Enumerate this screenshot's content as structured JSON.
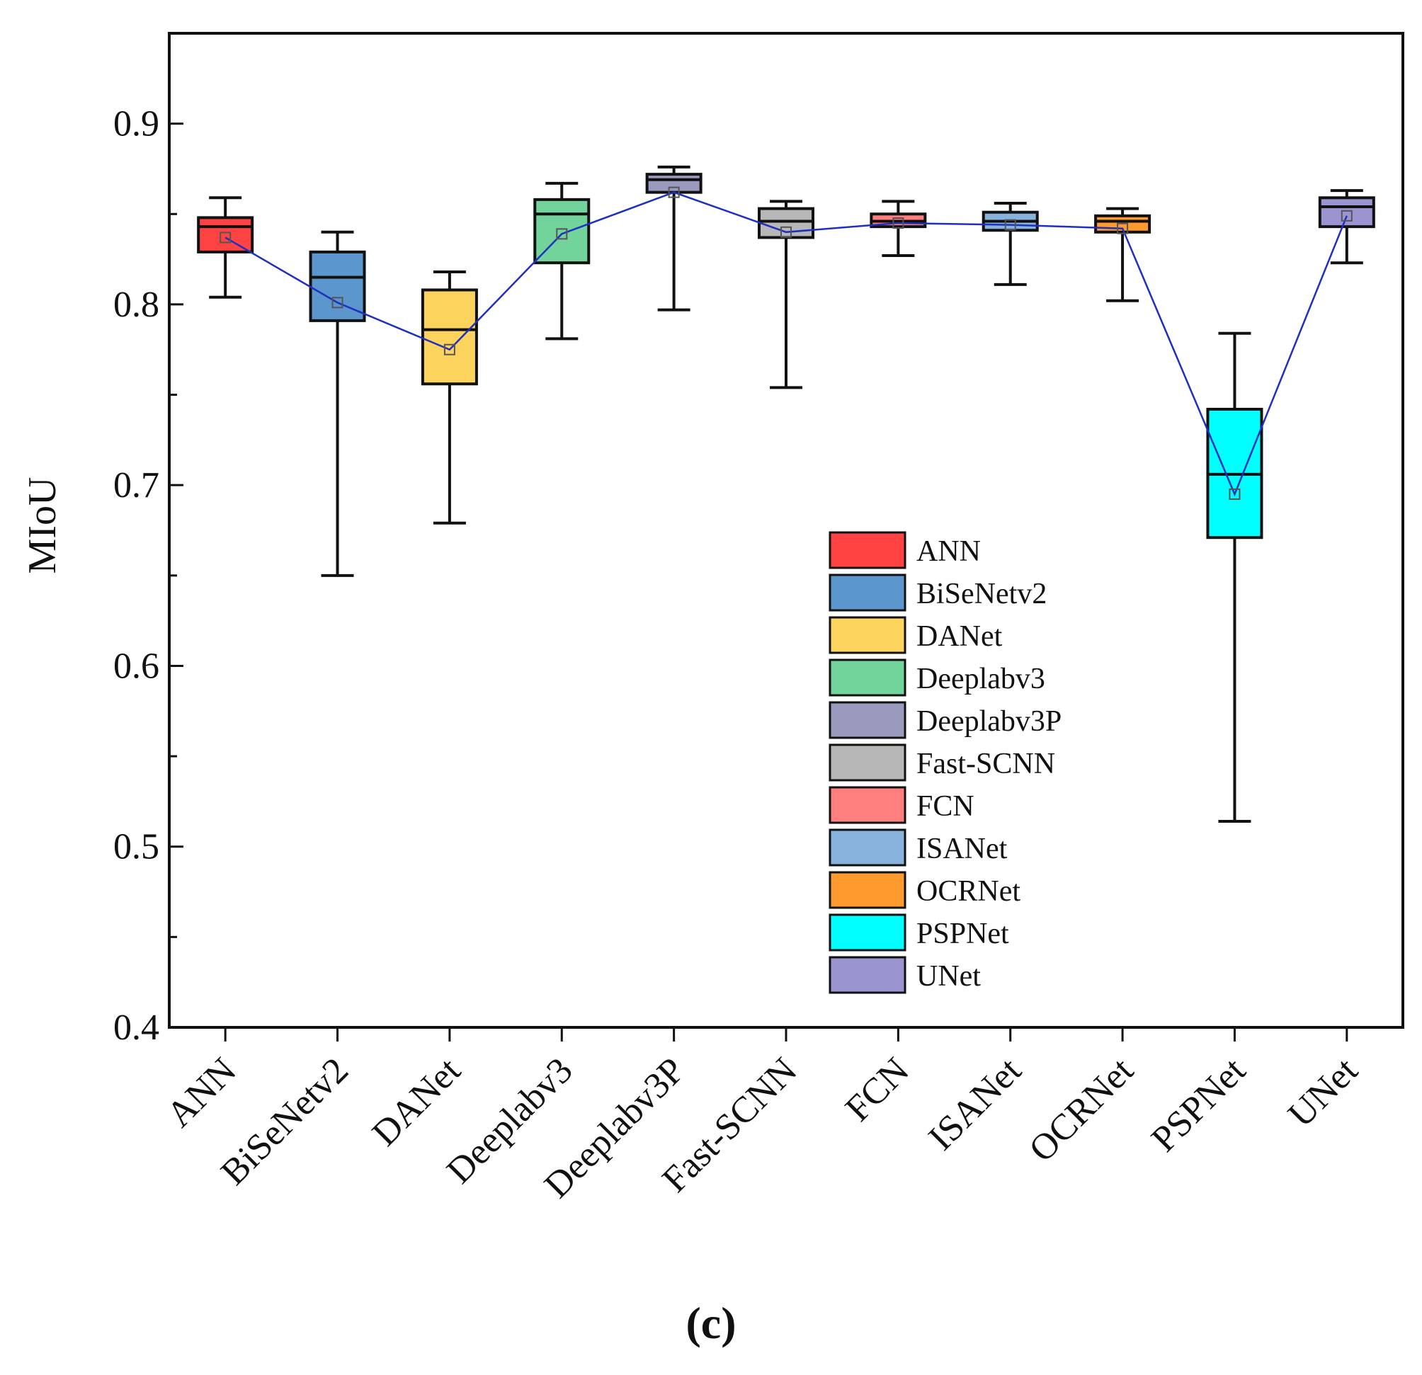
{
  "chart_data": {
    "type": "box",
    "ylabel": "MIoU",
    "xlabel": "",
    "ylim": [
      0.4,
      0.95
    ],
    "yticks": [
      "0.4",
      "0.5",
      "0.6",
      "0.7",
      "0.8",
      "0.9"
    ],
    "categories": [
      "ANN",
      "BiSeNetv2",
      "DANet",
      "Deeplabv3",
      "Deeplabv3P",
      "Fast-SCNN",
      "FCN",
      "ISANet",
      "OCRNet",
      "PSPNet",
      "UNet"
    ],
    "boxes": [
      {
        "name": "ANN",
        "color": "#ff4242",
        "min": 0.804,
        "q1": 0.829,
        "median": 0.843,
        "q3": 0.848,
        "max": 0.859,
        "mean": 0.837
      },
      {
        "name": "BiSeNetv2",
        "color": "#5b96cc",
        "min": 0.65,
        "q1": 0.791,
        "median": 0.815,
        "q3": 0.829,
        "max": 0.84,
        "mean": 0.801
      },
      {
        "name": "DANet",
        "color": "#fcd35d",
        "min": 0.679,
        "q1": 0.756,
        "median": 0.786,
        "q3": 0.808,
        "max": 0.818,
        "mean": 0.775
      },
      {
        "name": "Deeplabv3",
        "color": "#72d49b",
        "min": 0.781,
        "q1": 0.823,
        "median": 0.85,
        "q3": 0.858,
        "max": 0.867,
        "mean": 0.839
      },
      {
        "name": "Deeplabv3P",
        "color": "#9a9abf",
        "min": 0.797,
        "q1": 0.862,
        "median": 0.869,
        "q3": 0.872,
        "max": 0.876,
        "mean": 0.862
      },
      {
        "name": "Fast-SCNN",
        "color": "#b7b7b7",
        "min": 0.754,
        "q1": 0.837,
        "median": 0.846,
        "q3": 0.853,
        "max": 0.857,
        "mean": 0.84
      },
      {
        "name": "FCN",
        "color": "#ff7f7f",
        "min": 0.827,
        "q1": 0.843,
        "median": 0.846,
        "q3": 0.85,
        "max": 0.857,
        "mean": 0.845
      },
      {
        "name": "ISANet",
        "color": "#87b3dd",
        "min": 0.811,
        "q1": 0.841,
        "median": 0.846,
        "q3": 0.851,
        "max": 0.856,
        "mean": 0.844
      },
      {
        "name": "OCRNet",
        "color": "#ff9a2e",
        "min": 0.802,
        "q1": 0.84,
        "median": 0.846,
        "q3": 0.849,
        "max": 0.853,
        "mean": 0.842
      },
      {
        "name": "PSPNet",
        "color": "#00ffff",
        "min": 0.514,
        "q1": 0.671,
        "median": 0.706,
        "q3": 0.742,
        "max": 0.784,
        "mean": 0.695
      },
      {
        "name": "UNet",
        "color": "#9a94d0",
        "min": 0.823,
        "q1": 0.843,
        "median": 0.854,
        "q3": 0.859,
        "max": 0.863,
        "mean": 0.849
      }
    ],
    "mean_line_color": "#1f2fbf",
    "legend": {
      "position": "lower-right",
      "entries": [
        "ANN",
        "BiSeNetv2",
        "DANet",
        "Deeplabv3",
        "Deeplabv3P",
        "Fast-SCNN",
        "FCN",
        "ISANet",
        "OCRNet",
        "PSPNet",
        "UNet"
      ]
    }
  },
  "panel_label": "(c)"
}
